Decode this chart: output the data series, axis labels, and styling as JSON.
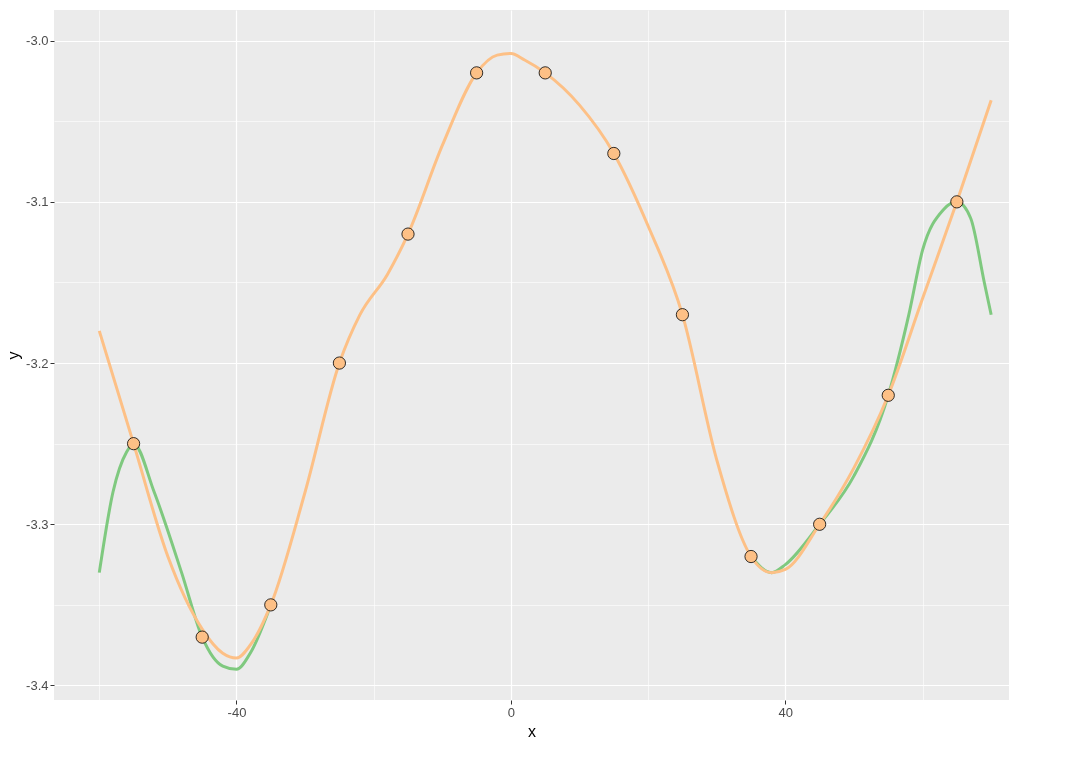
{
  "chart_data": {
    "type": "scatter",
    "xlabel": "x",
    "ylabel": "y",
    "xlim": [
      -66.6,
      72.6
    ],
    "ylim": [
      -3.409,
      -2.981
    ],
    "xticks": [
      {
        "value": -60,
        "label": null
      },
      -40,
      {
        "value": -20,
        "label": null
      },
      0,
      {
        "value": 20,
        "label": null
      },
      40,
      {
        "value": 60,
        "label": null
      }
    ],
    "yticks": [
      -3.4,
      {
        "value": -3.35,
        "label": null
      },
      -3.3,
      {
        "value": -3.25,
        "label": null
      },
      -3.2,
      {
        "value": -3.15,
        "label": null
      },
      -3.1,
      {
        "value": -3.05,
        "label": null
      },
      {
        "value": -3.0,
        "label": "-3.0"
      }
    ],
    "grid": true,
    "series": [
      {
        "type": "line",
        "color": "#7fc97f",
        "x": [
          -60,
          -58,
          -56,
          -55,
          -52,
          -48,
          -45,
          -42,
          -40,
          -38,
          -35,
          0,
          35,
          38,
          40,
          45,
          50,
          55,
          58,
          60,
          63,
          65,
          67,
          69,
          70
        ],
        "values": [
          -3.33,
          -3.28,
          -3.255,
          -3.25,
          -3.28,
          -3.33,
          -3.37,
          -3.388,
          -3.39,
          -3.38,
          -3.35,
          null,
          -3.32,
          -3.33,
          -3.325,
          -3.3,
          -3.27,
          -3.22,
          -3.17,
          -3.13,
          -3.105,
          -3.1,
          -3.11,
          -3.15,
          -3.17
        ]
      },
      {
        "type": "line",
        "color": "#fdc086",
        "x": [
          -60,
          -55,
          -50,
          -45,
          -42,
          -40,
          -38,
          -35,
          -30,
          -25,
          -22,
          -18,
          -15,
          -10,
          -5,
          -2,
          0,
          2,
          5,
          10,
          15,
          20,
          25,
          30,
          35,
          38,
          40,
          45,
          50,
          55,
          60,
          65,
          70
        ],
        "values": [
          -3.18,
          -3.25,
          -3.32,
          -3.365,
          -3.38,
          -3.383,
          -3.375,
          -3.35,
          -3.28,
          -3.2,
          -3.17,
          -3.145,
          -3.12,
          -3.065,
          -3.02,
          -3.009,
          -3.008,
          -3.012,
          -3.02,
          -3.04,
          -3.07,
          -3.115,
          -3.17,
          -3.26,
          -3.32,
          -3.33,
          -3.328,
          -3.3,
          -3.265,
          -3.22,
          -3.16,
          -3.1,
          -3.037
        ]
      },
      {
        "color": "#fdc086",
        "marker": "circle",
        "x": [
          -55,
          -45,
          -35,
          -25,
          -15,
          -5,
          5,
          15,
          25,
          35,
          45,
          55,
          65
        ],
        "values": [
          -3.25,
          -3.37,
          -3.35,
          -3.2,
          -3.12,
          -3.02,
          -3.02,
          -3.07,
          -3.17,
          -3.32,
          -3.3,
          -3.22,
          -3.1
        ]
      }
    ]
  }
}
